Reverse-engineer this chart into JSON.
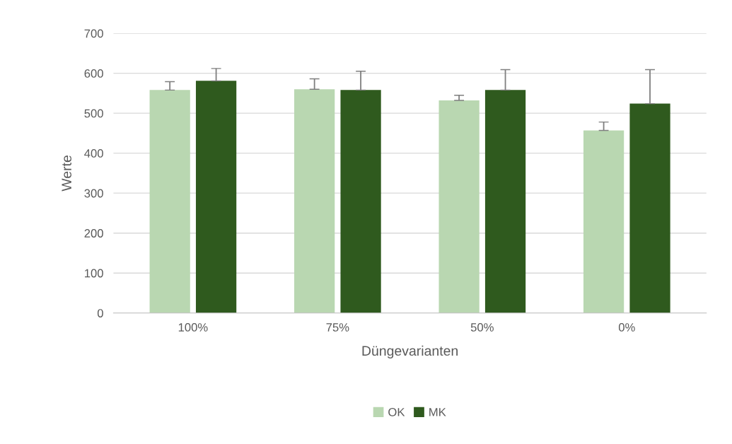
{
  "chart_data": {
    "type": "bar",
    "xlabel": "Düngevarianten",
    "ylabel": "Werte",
    "categories": [
      "100%",
      "75%",
      "50%",
      "0%"
    ],
    "series": [
      {
        "name": "OK",
        "color": "#b9d7b1",
        "values": [
          558,
          560,
          532,
          457
        ],
        "errors": [
          [
            558,
            579
          ],
          [
            560,
            586
          ],
          [
            532,
            545
          ],
          [
            457,
            478
          ]
        ]
      },
      {
        "name": "MK",
        "color": "#2f5a1e",
        "values": [
          581,
          558,
          558,
          524
        ],
        "errors": [
          [
            581,
            612
          ],
          [
            558,
            605
          ],
          [
            558,
            609
          ],
          [
            524,
            609
          ]
        ]
      }
    ],
    "ylim": [
      0,
      700
    ],
    "yticks": [
      0,
      100,
      200,
      300,
      400,
      500,
      600,
      700
    ],
    "grid": "y",
    "legend": "bottom"
  }
}
